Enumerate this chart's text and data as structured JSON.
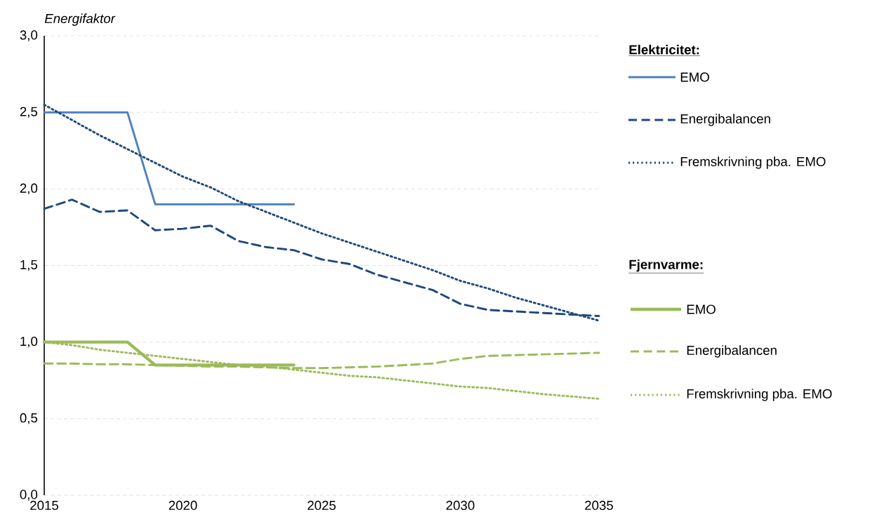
{
  "chart_data": {
    "type": "line",
    "ylabel": "Energifaktor",
    "x": [
      2015,
      2016,
      2017,
      2018,
      2019,
      2020,
      2021,
      2022,
      2023,
      2024,
      2025,
      2026,
      2027,
      2028,
      2029,
      2030,
      2031,
      2032,
      2033,
      2034,
      2035
    ],
    "series": [
      {
        "name": "EMO",
        "color": "#4f81bd",
        "line_style": "solid",
        "values": [
          2.5,
          2.5,
          2.5,
          2.5,
          1.9,
          1.9,
          1.9,
          1.9,
          1.9,
          1.9,
          null,
          null,
          null,
          null,
          null,
          null,
          null,
          null,
          null,
          null,
          null
        ]
      },
      {
        "name": "Energibalancen",
        "color": "#1f497d",
        "line_style": "dashed",
        "values": [
          1.87,
          1.93,
          1.85,
          1.86,
          1.73,
          1.74,
          1.76,
          1.66,
          1.62,
          1.6,
          1.54,
          1.51,
          1.44,
          1.39,
          1.34,
          1.25,
          1.21,
          1.2,
          1.19,
          1.18,
          1.17
        ]
      },
      {
        "name": "Fremskrivning pba. EMO",
        "color": "#1f497d",
        "line_style": "dotted",
        "values": [
          2.55,
          2.45,
          2.35,
          2.26,
          2.17,
          2.08,
          2.01,
          1.92,
          1.85,
          1.78,
          1.71,
          1.65,
          1.59,
          1.53,
          1.47,
          1.4,
          1.35,
          1.29,
          1.24,
          1.19,
          1.14
        ]
      },
      {
        "name": "EMO",
        "color": "#9bbb59",
        "line_style": "solid",
        "values": [
          1.0,
          1.0,
          1.0,
          1.0,
          0.85,
          0.85,
          0.85,
          0.85,
          0.85,
          0.85,
          null,
          null,
          null,
          null,
          null,
          null,
          null,
          null,
          null,
          null,
          null
        ]
      },
      {
        "name": "Energibalancen",
        "color": "#9bbb59",
        "line_style": "dashed",
        "values": [
          0.86,
          0.86,
          0.855,
          0.855,
          0.85,
          0.845,
          0.84,
          0.84,
          0.835,
          0.83,
          0.83,
          0.835,
          0.84,
          0.85,
          0.86,
          0.89,
          0.91,
          0.915,
          0.92,
          0.925,
          0.93
        ]
      },
      {
        "name": "Fremskrivning pba. EMO",
        "color": "#9bbb59",
        "line_style": "dotted",
        "values": [
          1.0,
          0.98,
          0.95,
          0.93,
          0.91,
          0.89,
          0.87,
          0.85,
          0.84,
          0.82,
          0.8,
          0.78,
          0.77,
          0.75,
          0.73,
          0.71,
          0.7,
          0.68,
          0.66,
          0.645,
          0.63
        ]
      }
    ],
    "annotations": [
      "Elektricitet:",
      "Fjernvarme:"
    ],
    "xlim": [
      2015,
      2035
    ],
    "xticks": [
      2015,
      2020,
      2025,
      2030,
      2035
    ],
    "ylim": [
      0,
      3
    ],
    "yticks": [
      {
        "value": 0,
        "label": "0,0"
      },
      {
        "value": 0.5,
        "label": "0,5"
      },
      {
        "value": 1,
        "label": "1,0"
      },
      {
        "value": 1.5,
        "label": "1,5"
      },
      {
        "value": 2,
        "label": "2,0"
      },
      {
        "value": 2.5,
        "label": "2,5"
      },
      {
        "value": 3,
        "label": "3,0"
      }
    ],
    "grid": "y",
    "legend": "right",
    "marker": "none"
  }
}
